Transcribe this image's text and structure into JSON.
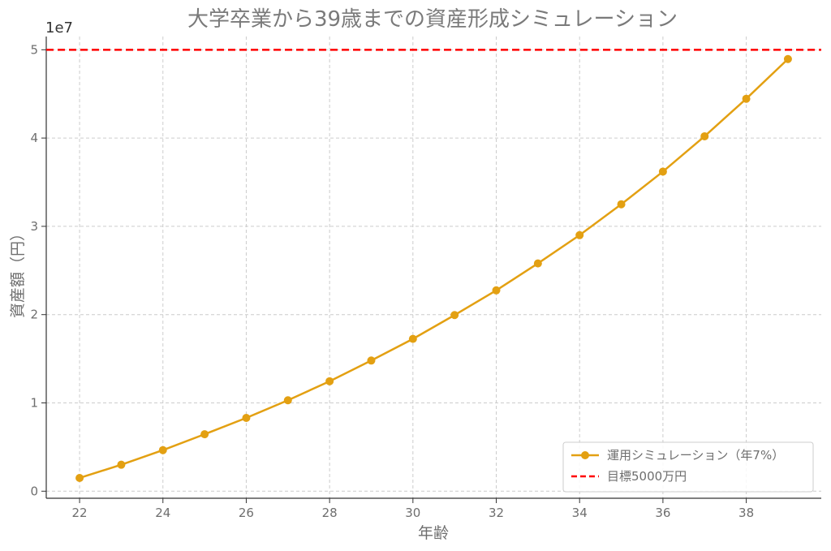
{
  "chart_data": {
    "type": "line",
    "title": "大学卒業から39歳までの資産形成シミュレーション",
    "xlabel": "年齢",
    "ylabel": "資産額（円）",
    "y_offset_label": "1e7",
    "xlim": [
      21.2,
      39.8
    ],
    "ylim": [
      -0.08,
      5.15
    ],
    "y_scale_factor": 10000000,
    "x_ticks": [
      22,
      24,
      26,
      28,
      30,
      32,
      34,
      36,
      38
    ],
    "y_ticks": [
      0,
      1,
      2,
      3,
      4,
      5
    ],
    "grid": true,
    "legend_position": "lower-right",
    "series": [
      {
        "name": "運用シミュレーション（年7%）",
        "color": "#E3A012",
        "x": [
          22,
          23,
          24,
          25,
          26,
          27,
          28,
          29,
          30,
          31,
          32,
          33,
          34,
          35,
          36,
          37,
          38,
          39
        ],
        "values": [
          1500000,
          3000000,
          4650000,
          6450000,
          8300000,
          10300000,
          12450000,
          14800000,
          17250000,
          19950000,
          22750000,
          25800000,
          29000000,
          32500000,
          36200000,
          40200000,
          44450000,
          48950000
        ]
      }
    ],
    "target_line": {
      "name": "目標5000万円",
      "value": 50000000,
      "color": "#FF0000"
    }
  }
}
